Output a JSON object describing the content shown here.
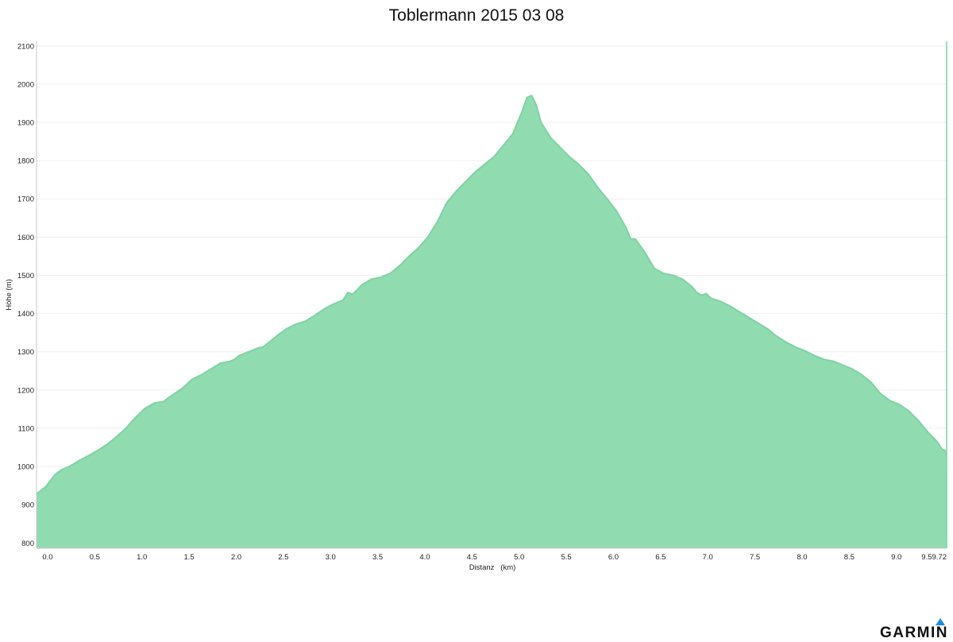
{
  "brand": {
    "name": "GARMIN",
    "accent_color": "#1a8fe3"
  },
  "chart_data": {
    "type": "area",
    "title": "Toblermann 2015 03 08",
    "xlabel": "Distanz   (km)",
    "ylabel": "Höhe (m)",
    "xlim": [
      -0.05,
      9.6
    ],
    "ylim": [
      786,
      2112
    ],
    "x_ticks": [
      0.0,
      0.5,
      1.0,
      1.5,
      2.0,
      2.5,
      3.0,
      3.5,
      4.0,
      4.5,
      5.0,
      5.5,
      6.0,
      6.5,
      7.0,
      7.5,
      8.0,
      8.5,
      9.0,
      9.59
    ],
    "x_tick_labels": [
      "0.0",
      "0.5",
      "1.0",
      "1.5",
      "2.0",
      "2.5",
      "3.0",
      "3.5",
      "4.0",
      "4.5",
      "5.0",
      "5.5",
      "6.0",
      "6.5",
      "7.0",
      "7.5",
      "8.0",
      "8.5",
      "9.0",
      "9.59.72"
    ],
    "y_ticks": [
      800,
      900,
      1000,
      1100,
      1200,
      1300,
      1400,
      1500,
      1600,
      1700,
      1800,
      1900,
      2000,
      2100
    ],
    "y_tick_labels": [
      "800",
      "900",
      "1000",
      "1100",
      "1200",
      "1300",
      "1400",
      "1500",
      "1600",
      "1700",
      "1800",
      "1900",
      "2000",
      "2100"
    ],
    "grid": true,
    "fill_color": "#90dbb0",
    "line_color": "#7fd4a3",
    "points": {
      "x": [
        -0.05,
        0.05,
        0.15,
        0.22,
        0.3,
        0.4,
        0.5,
        0.6,
        0.7,
        0.8,
        0.9,
        0.95,
        1.0,
        1.1,
        1.2,
        1.3,
        1.35,
        1.5,
        1.6,
        1.7,
        1.8,
        1.9,
        2.0,
        2.05,
        2.1,
        2.2,
        2.3,
        2.35,
        2.4,
        2.5,
        2.6,
        2.65,
        2.7,
        2.8,
        2.9,
        3.0,
        3.1,
        3.2,
        3.25,
        3.3,
        3.35,
        3.4,
        3.5,
        3.6,
        3.7,
        3.8,
        3.9,
        4.0,
        4.1,
        4.2,
        4.3,
        4.4,
        4.5,
        4.6,
        4.7,
        4.75,
        4.8,
        4.9,
        5.0,
        5.05,
        5.1,
        5.15,
        5.2,
        5.25,
        5.3,
        5.4,
        5.5,
        5.6,
        5.7,
        5.8,
        5.9,
        6.0,
        6.1,
        6.2,
        6.25,
        6.3,
        6.4,
        6.5,
        6.6,
        6.7,
        6.8,
        6.9,
        6.95,
        7.0,
        7.05,
        7.1,
        7.2,
        7.3,
        7.4,
        7.5,
        7.6,
        7.7,
        7.8,
        7.9,
        8.0,
        8.1,
        8.2,
        8.3,
        8.4,
        8.5,
        8.6,
        8.7,
        8.8,
        8.9,
        9.0,
        9.1,
        9.2,
        9.3,
        9.4,
        9.5,
        9.55,
        9.6
      ],
      "y": [
        928,
        948,
        980,
        992,
        1000,
        1015,
        1028,
        1042,
        1058,
        1078,
        1100,
        1115,
        1128,
        1152,
        1166,
        1170,
        1180,
        1205,
        1228,
        1240,
        1255,
        1270,
        1275,
        1280,
        1290,
        1300,
        1310,
        1312,
        1322,
        1342,
        1360,
        1366,
        1372,
        1380,
        1395,
        1412,
        1425,
        1435,
        1455,
        1450,
        1462,
        1475,
        1490,
        1495,
        1505,
        1525,
        1550,
        1572,
        1600,
        1640,
        1690,
        1720,
        1745,
        1770,
        1790,
        1800,
        1810,
        1840,
        1870,
        1900,
        1930,
        1965,
        1970,
        1945,
        1900,
        1860,
        1835,
        1810,
        1790,
        1765,
        1730,
        1700,
        1668,
        1625,
        1595,
        1595,
        1560,
        1518,
        1505,
        1500,
        1490,
        1470,
        1455,
        1448,
        1452,
        1440,
        1432,
        1420,
        1405,
        1390,
        1375,
        1360,
        1340,
        1325,
        1312,
        1302,
        1290,
        1280,
        1275,
        1265,
        1255,
        1240,
        1220,
        1190,
        1172,
        1162,
        1145,
        1120,
        1090,
        1065,
        1045,
        1040
      ]
    }
  }
}
